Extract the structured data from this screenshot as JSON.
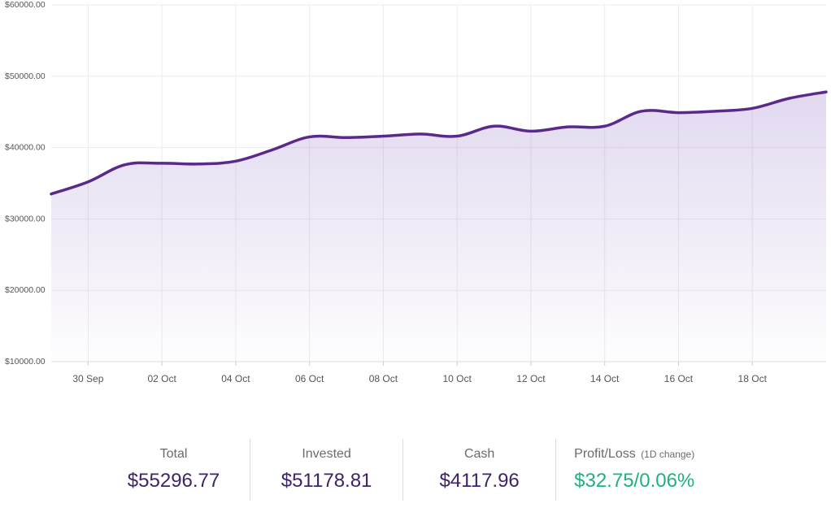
{
  "chart_data": {
    "type": "area",
    "title": "",
    "xlabel": "",
    "ylabel": "",
    "ylim": [
      10000,
      60000
    ],
    "y_ticks": [
      "$10000.00",
      "$20000.00",
      "$30000.00",
      "$40000.00",
      "$50000.00",
      "$60000.00"
    ],
    "x_ticks": [
      "30 Sep",
      "02 Oct",
      "04 Oct",
      "06 Oct",
      "08 Oct",
      "10 Oct",
      "12 Oct",
      "14 Oct",
      "16 Oct",
      "18 Oct"
    ],
    "grid": true,
    "series": [
      {
        "x": [
          "29 Sep",
          "30 Sep",
          "01 Oct",
          "02 Oct",
          "03 Oct",
          "04 Oct",
          "05 Oct",
          "06 Oct",
          "07 Oct",
          "08 Oct",
          "09 Oct",
          "10 Oct",
          "11 Oct",
          "12 Oct",
          "13 Oct",
          "14 Oct",
          "15 Oct",
          "16 Oct",
          "17 Oct",
          "18 Oct",
          "19 Oct",
          "20 Oct"
        ],
        "values": [
          33500,
          35200,
          37600,
          37800,
          37700,
          38100,
          39700,
          41500,
          41400,
          41600,
          41900,
          41600,
          43000,
          42300,
          42900,
          43000,
          45100,
          44900,
          45100,
          45500,
          46900,
          47800
        ]
      }
    ],
    "colors": {
      "line": "#5a2a8a",
      "fill": "#7b52b9"
    }
  },
  "summary": {
    "total": {
      "label": "Total",
      "value": "$55296.77"
    },
    "invested": {
      "label": "Invested",
      "value": "$51178.81"
    },
    "cash": {
      "label": "Cash",
      "value": "$4117.96"
    },
    "profit_loss": {
      "label": "Profit/Loss",
      "sublabel": "(1D change)",
      "value": "$32.75/0.06%"
    }
  }
}
